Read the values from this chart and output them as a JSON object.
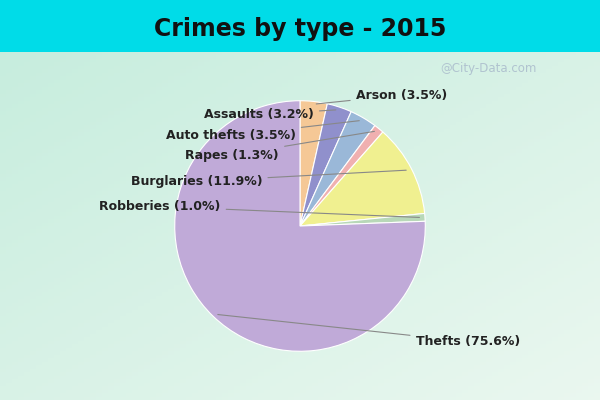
{
  "title": "Crimes by type - 2015",
  "labels": [
    "Thefts",
    "Burglaries",
    "Arson",
    "Assaults",
    "Auto thefts",
    "Rapes",
    "Robberies"
  ],
  "sizes": [
    75.6,
    11.9,
    3.5,
    3.2,
    3.5,
    1.3,
    1.0
  ],
  "colors": [
    "#c0aad8",
    "#f0f090",
    "#f5c896",
    "#9090cc",
    "#9ab8d8",
    "#f0b0b0",
    "#b8d8b8"
  ],
  "label_texts": [
    "Thefts (75.6%)",
    "Burglaries (11.9%)",
    "Arson (3.5%)",
    "Assaults (3.2%)",
    "Auto thefts (3.5%)",
    "Rapes (1.3%)",
    "Robberies (1.0%)"
  ],
  "bg_top_color": "#00dce8",
  "bg_main_color_tl": "#c0e8d8",
  "bg_main_color_br": "#e8f0e8",
  "title_fontsize": 17,
  "label_fontsize": 9,
  "watermark": "@City-Data.com"
}
